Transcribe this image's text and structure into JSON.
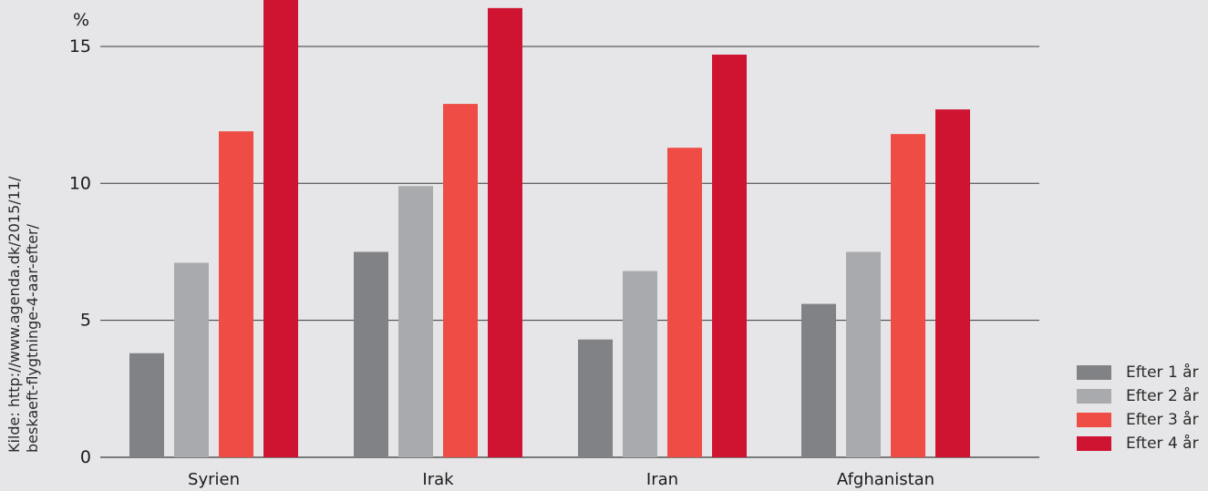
{
  "source_lines": [
    "Kilde: http://www.agenda.dk/2015/11/",
    "beskaeft-flygtninge-4-aar-efter/"
  ],
  "chart_data": {
    "type": "bar",
    "unit_label": "%",
    "categories": [
      "Syrien",
      "Irak",
      "Iran",
      "Afghanistan"
    ],
    "series": [
      {
        "name": "Efter 1 år",
        "color": "#818285",
        "values": [
          3.8,
          7.5,
          4.3,
          5.6
        ]
      },
      {
        "name": "Efter 2 år",
        "color": "#a9aaad",
        "values": [
          7.1,
          9.9,
          6.8,
          7.5
        ]
      },
      {
        "name": "Efter 3 år",
        "color": "#ee4c44",
        "values": [
          11.9,
          12.9,
          11.3,
          11.8
        ]
      },
      {
        "name": "Efter 4 år",
        "color": "#cf1432",
        "values": [
          16.7,
          16.4,
          14.7,
          12.7
        ]
      }
    ],
    "yticks": [
      0,
      5,
      10,
      15
    ],
    "ylim": [
      0,
      16.7
    ],
    "grid": true,
    "legend_position": "bottom-right"
  }
}
